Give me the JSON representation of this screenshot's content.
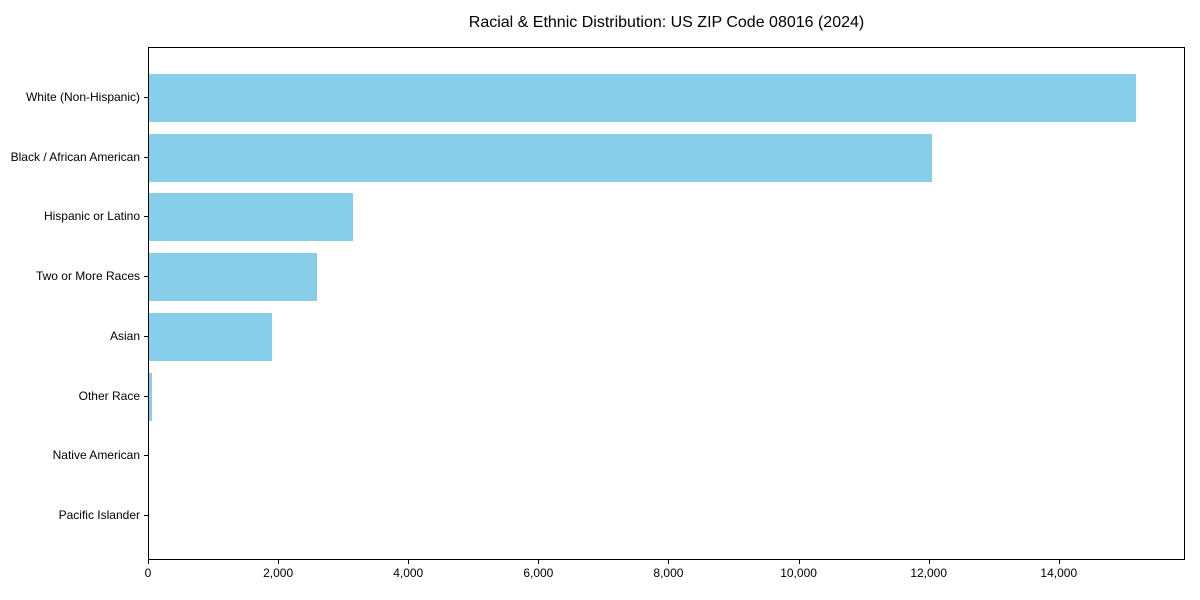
{
  "chart_data": {
    "type": "bar",
    "orientation": "horizontal",
    "title": "Racial & Ethnic Distribution: US ZIP Code 08016 (2024)",
    "categories": [
      "White (Non-Hispanic)",
      "Black / African American",
      "Hispanic or Latino",
      "Two or More Races",
      "Asian",
      "Other Race",
      "Native American",
      "Pacific Islander"
    ],
    "values": [
      15200,
      12060,
      3140,
      2590,
      1900,
      45,
      0,
      0
    ],
    "xlabel": "",
    "ylabel": "",
    "xlim": [
      0,
      15940
    ],
    "xticks": [
      0,
      2000,
      4000,
      6000,
      8000,
      10000,
      12000,
      14000
    ],
    "xtick_labels": [
      "0",
      "2,000",
      "4,000",
      "6,000",
      "8,000",
      "10,000",
      "12,000",
      "14,000"
    ],
    "bar_color": "#87CEEB",
    "grid": false,
    "legend": "none",
    "frame": true
  },
  "colors": {
    "bar": "#87CEEB",
    "axis": "#000000",
    "text": "#000000",
    "background": "#ffffff"
  }
}
